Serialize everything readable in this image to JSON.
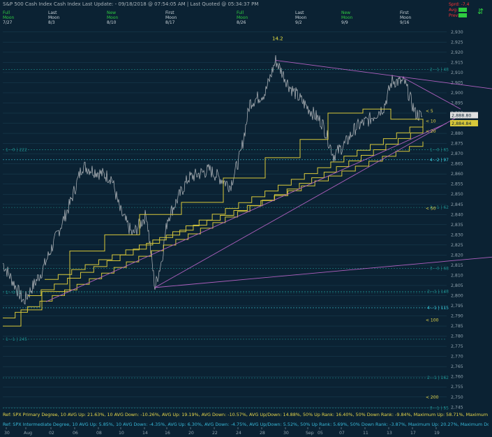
{
  "header": {
    "title": "S&P 500 Cash Index   Cash Index   Last Update: - 09/18/2018 @ 07:54:05 AM | Last Quoted @ 05:34:37 PM"
  },
  "top_right": {
    "spread_label": "Sprd: -7.4",
    "avg_label": "Avg:",
    "prev_label": "Prev:"
  },
  "moon_phases": [
    {
      "line1": "Full",
      "line2": "Moon",
      "date": "7/27",
      "color": "#2ecc40"
    },
    {
      "line1": "Last",
      "line2": "Moon",
      "date": "8/3",
      "color": "#c8d2d8"
    },
    {
      "line1": "New",
      "line2": "Moon",
      "date": "8/10",
      "color": "#2ecc40"
    },
    {
      "line1": "First",
      "line2": "Moon",
      "date": "8/17",
      "color": "#c8d2d8"
    },
    {
      "line1": "Full",
      "line2": "Moon",
      "date": "8/26",
      "color": "#2ecc40"
    },
    {
      "line1": "Last",
      "line2": "Moon",
      "date": "9/2",
      "color": "#c8d2d8"
    },
    {
      "line1": "New",
      "line2": "Moon",
      "date": "9/9",
      "color": "#2ecc40"
    },
    {
      "line1": "First",
      "line2": "Moon",
      "date": "9/16",
      "color": "#c8d2d8"
    }
  ],
  "stats": {
    "line1": "Ref: SPX Primary Degree, 10 AVG Up: 21.63%, 10 AVG Down: -10.26%, AVG Up: 19.19%, AVG Down: -10.57%, AVG Up/Down: 14.88%, 50%  Up Rank: 16.40%, 50% Down Rank: -9.84%, Maximum Up: 58.71%, Maximum",
    "line2": "Ref: SPX Intermediate Degree, 10 AVG Up: 5.85%, 10 AVG Down: -4.35%, AVG Up: 6.30%, AVG Down: -4.75%, AVG Up/Down: 5.52%, 50%  Up Rank: 5.69%, 50% Down Rank: -3.87%, Maximum Up: 20.27%, Maximum Do",
    "line1_color": "#e8d84a",
    "line2_color": "#38b8d8"
  },
  "chart_data": {
    "type": "line",
    "title": "",
    "ylim": [
      2742,
      2932
    ],
    "y_ticks": [
      2745,
      2750,
      2755,
      2760,
      2765,
      2770,
      2775,
      2780,
      2785,
      2790,
      2795,
      2800,
      2805,
      2810,
      2815,
      2820,
      2825,
      2830,
      2835,
      2840,
      2845,
      2850,
      2855,
      2860,
      2865,
      2870,
      2875,
      2880,
      2885,
      2890,
      2895,
      2900,
      2905,
      2910,
      2915,
      2920,
      2925,
      2930
    ],
    "x_ticks": [
      "30",
      "Aug",
      "02",
      "06",
      "08",
      "10",
      "14",
      "16",
      "20",
      "22",
      "24",
      "28",
      "30",
      "Sep",
      "05",
      "07",
      "11",
      "13",
      "17",
      "19"
    ],
    "current_prices": [
      "2,888.80",
      "2,884.84"
    ],
    "annotations": [
      "14.2"
    ],
    "steps_labels": [
      "< 5",
      "< 10",
      "< 20",
      "< 50",
      "< 100",
      "< 200"
    ],
    "level_labels": [
      {
        "text": "2 - 1 | 48",
        "y": 2911.5,
        "side": "right",
        "color": "#1e8c8c"
      },
      {
        "text": "1 - 0 | 222",
        "y": 2872,
        "side": "left",
        "color": "#1e8c8c"
      },
      {
        "text": "1 - 0 | 65",
        "y": 2872,
        "side": "right",
        "color": "#1e8c8c"
      },
      {
        "text": "4 - 2 | 97",
        "y": 2867,
        "side": "right",
        "color": "#38c8d8"
      },
      {
        "text": "2 - 1 | 62",
        "y": 2843.5,
        "side": "right",
        "color": "#1e8c8c"
      },
      {
        "text": "3 - 0 | 68",
        "y": 2813.5,
        "side": "right",
        "color": "#1e8c8c"
      },
      {
        "text": "1 - 0 | 2",
        "y": 2801.5,
        "side": "left",
        "color": "#1e8c8c"
      },
      {
        "text": "2 - 1 | 148",
        "y": 2802,
        "side": "right",
        "color": "#1e8c8c"
      },
      {
        "text": "4 - 1 | 115",
        "y": 2794,
        "side": "right",
        "color": "#38c8d8"
      },
      {
        "text": "1 - 1 | 245",
        "y": 2778.5,
        "side": "left",
        "color": "#1e8c8c"
      },
      {
        "text": "2 - 1 | 162",
        "y": 2759.5,
        "side": "right",
        "color": "#1e8c8c"
      },
      {
        "text": "3 - 1 | 55",
        "y": 2744.5,
        "side": "right",
        "color": "#1e8c8c"
      }
    ],
    "colors": {
      "price": "#b8bcc0",
      "steps": "#d8c83a",
      "trendline": "#b060c0",
      "grid": "#1f4a5e"
    }
  }
}
